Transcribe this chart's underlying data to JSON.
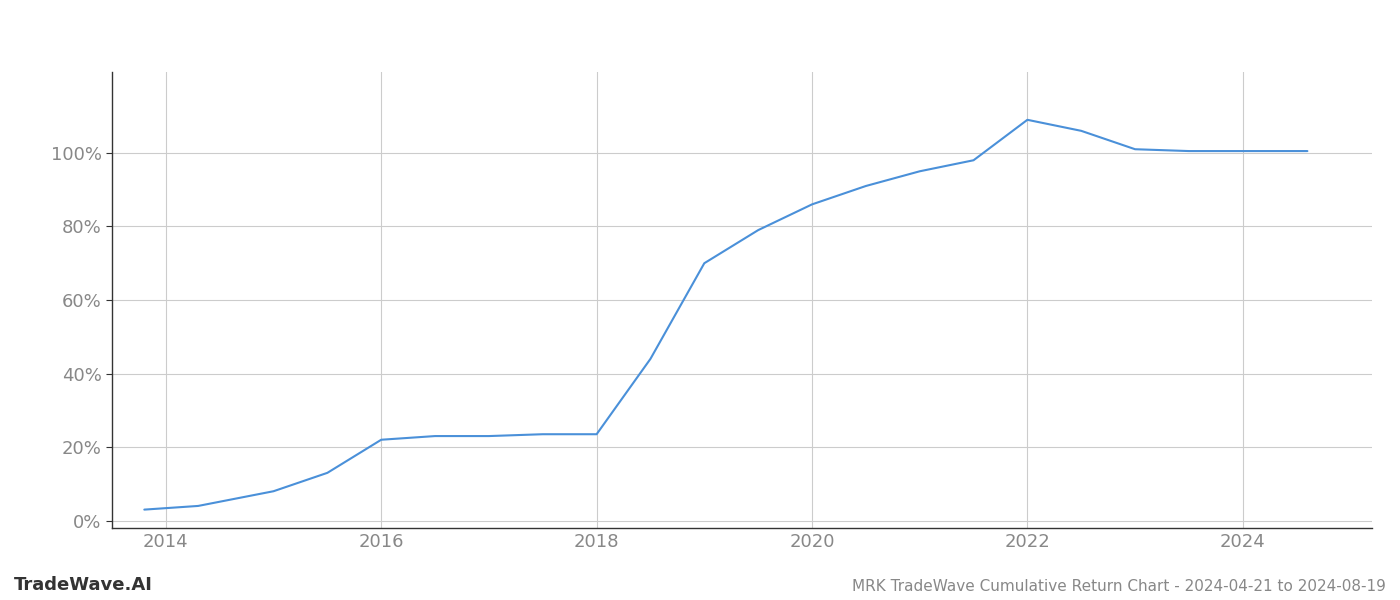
{
  "title": "MRK TradeWave Cumulative Return Chart - 2024-04-21 to 2024-08-19",
  "watermark": "TradeWave.AI",
  "line_color": "#4a90d9",
  "background_color": "#ffffff",
  "grid_color": "#cccccc",
  "x_years": [
    2013.8,
    2014.3,
    2015.0,
    2015.5,
    2016.0,
    2016.5,
    2017.0,
    2017.5,
    2018.0,
    2018.5,
    2019.0,
    2019.5,
    2020.0,
    2020.5,
    2021.0,
    2021.5,
    2022.0,
    2022.5,
    2023.0,
    2023.5,
    2024.0,
    2024.6
  ],
  "y_values": [
    0.03,
    0.04,
    0.08,
    0.13,
    0.22,
    0.23,
    0.23,
    0.235,
    0.235,
    0.44,
    0.7,
    0.79,
    0.86,
    0.91,
    0.95,
    0.98,
    1.09,
    1.06,
    1.01,
    1.005,
    1.005,
    1.005
  ],
  "xlim": [
    2013.5,
    2025.2
  ],
  "ylim": [
    -0.02,
    1.22
  ],
  "yticks": [
    0.0,
    0.2,
    0.4,
    0.6,
    0.8,
    1.0
  ],
  "ytick_labels": [
    "0%",
    "20%",
    "40%",
    "60%",
    "80%",
    "100%"
  ],
  "xticks": [
    2014,
    2016,
    2018,
    2020,
    2022,
    2024
  ],
  "title_fontsize": 11,
  "tick_fontsize": 13,
  "watermark_fontsize": 13,
  "line_width": 1.5,
  "tick_color": "#888888",
  "spine_color": "#333333",
  "left_spine_color": "#333333"
}
